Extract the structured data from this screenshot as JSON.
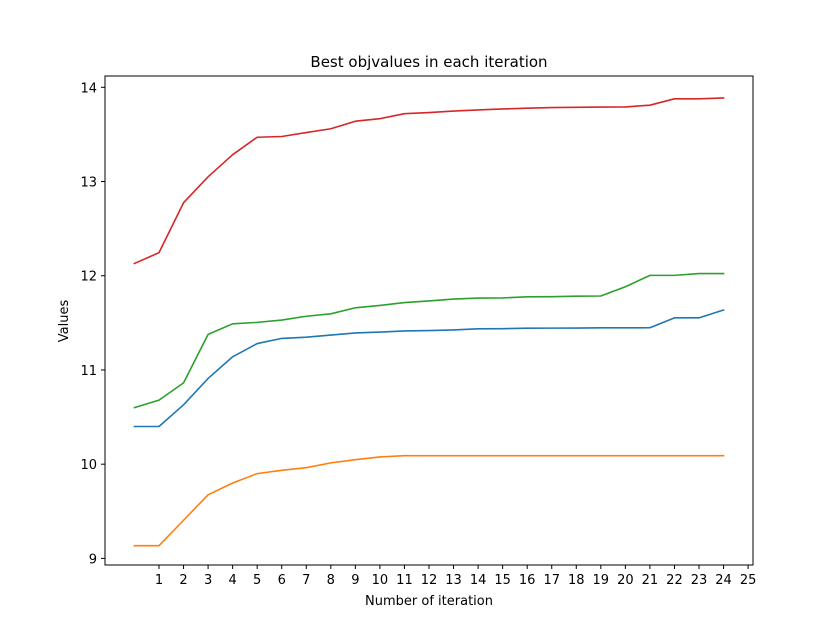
{
  "chart_data": {
    "type": "line",
    "title": "Best objvalues in each iteration",
    "xlabel": "Number of iteration",
    "ylabel": "Values",
    "x": [
      0,
      1,
      2,
      3,
      4,
      5,
      6,
      7,
      8,
      9,
      10,
      11,
      12,
      13,
      14,
      15,
      16,
      17,
      18,
      19,
      20,
      21,
      22,
      23,
      24
    ],
    "xticks": [
      1,
      2,
      3,
      4,
      5,
      6,
      7,
      8,
      9,
      10,
      11,
      12,
      13,
      14,
      15,
      16,
      17,
      18,
      19,
      20,
      21,
      22,
      23,
      24,
      25
    ],
    "xlim": [
      -1.2,
      25.2
    ],
    "yticks": [
      9,
      10,
      11,
      12,
      13,
      14
    ],
    "ylim": [
      8.93,
      14.12
    ],
    "grid": false,
    "series": [
      {
        "color": "#1f77b4",
        "values": [
          10.4,
          10.4,
          10.63,
          10.91,
          11.14,
          11.28,
          11.335,
          11.348,
          11.37,
          11.393,
          11.402,
          11.414,
          11.418,
          11.425,
          11.437,
          11.438,
          11.443,
          11.444,
          11.445,
          11.447,
          11.447,
          11.448,
          11.553,
          11.553,
          11.637
        ]
      },
      {
        "color": "#ff7f0e",
        "values": [
          9.135,
          9.135,
          9.405,
          9.675,
          9.8,
          9.9,
          9.935,
          9.963,
          10.014,
          10.048,
          10.077,
          10.09,
          10.09,
          10.09,
          10.09,
          10.09,
          10.09,
          10.09,
          10.09,
          10.09,
          10.09,
          10.09,
          10.09,
          10.09,
          10.09
        ]
      },
      {
        "color": "#2ca02c",
        "values": [
          10.6,
          10.68,
          10.863,
          11.378,
          11.49,
          11.505,
          11.53,
          11.57,
          11.596,
          11.66,
          11.685,
          11.715,
          11.733,
          11.753,
          11.763,
          11.765,
          11.776,
          11.778,
          11.783,
          11.785,
          11.883,
          12.004,
          12.004,
          12.023,
          12.023
        ]
      },
      {
        "color": "#d62728",
        "values": [
          12.13,
          12.245,
          12.775,
          13.05,
          13.285,
          13.47,
          13.478,
          13.52,
          13.56,
          13.64,
          13.667,
          13.72,
          13.732,
          13.748,
          13.76,
          13.77,
          13.778,
          13.785,
          13.788,
          13.79,
          13.792,
          13.81,
          13.878,
          13.878,
          13.887
        ]
      }
    ]
  }
}
